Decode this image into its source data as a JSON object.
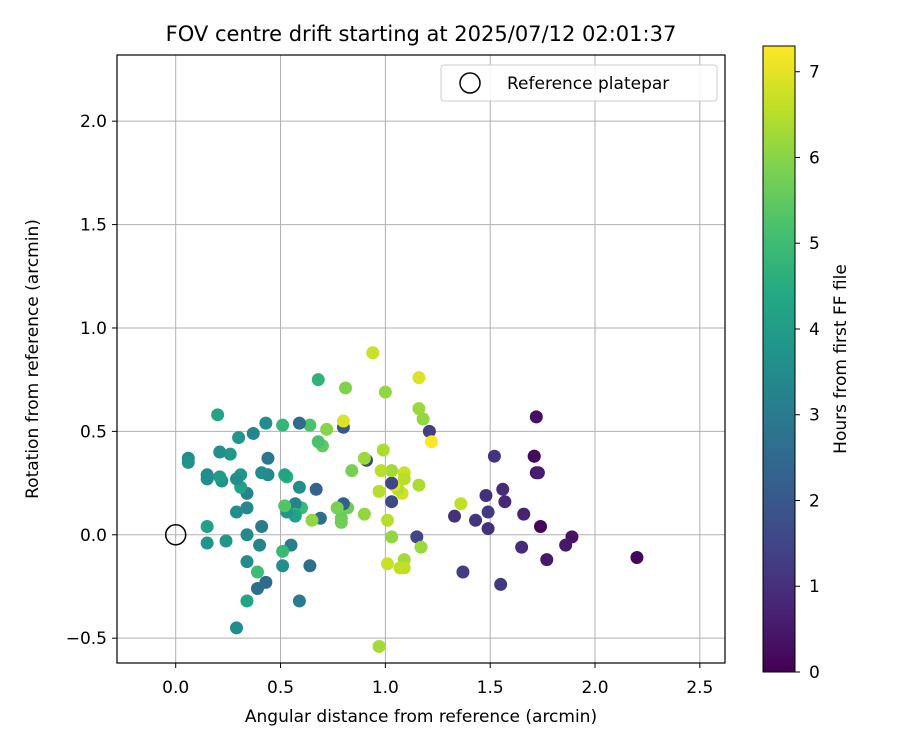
{
  "chart_data": {
    "type": "scatter",
    "title": "FOV centre drift starting at 2025/07/12 02:01:37",
    "xlabel": "Angular distance from reference (arcmin)",
    "ylabel": "Rotation from reference (arcmin)",
    "xlim": [
      -0.28,
      2.62
    ],
    "ylim": [
      -0.62,
      2.32
    ],
    "xticks": [
      0.0,
      0.5,
      1.0,
      1.5,
      2.0,
      2.5
    ],
    "xtick_labels": [
      "0.0",
      "0.5",
      "1.0",
      "1.5",
      "2.0",
      "2.5"
    ],
    "yticks": [
      -0.5,
      0.0,
      0.5,
      1.0,
      1.5,
      2.0
    ],
    "ytick_labels": [
      "−0.5",
      "0.0",
      "0.5",
      "1.0",
      "1.5",
      "2.0"
    ],
    "grid": true,
    "legend": {
      "placement": "top-right",
      "entries": [
        "Reference platepar"
      ]
    },
    "reference_point": {
      "x": 0.0,
      "y": 0.0
    },
    "colorbar": {
      "label": "Hours from first FF file",
      "colormap": "viridis",
      "range": [
        0,
        7.3
      ],
      "ticks": [
        0,
        1,
        2,
        3,
        4,
        5,
        6,
        7
      ],
      "tick_labels": [
        "0",
        "1",
        "2",
        "3",
        "4",
        "5",
        "6",
        "7"
      ]
    },
    "points": [
      {
        "x": 2.2,
        "y": -0.11,
        "h": 0.1
      },
      {
        "x": 1.89,
        "y": -0.01,
        "h": 0.4
      },
      {
        "x": 1.86,
        "y": -0.05,
        "h": 0.5
      },
      {
        "x": 1.74,
        "y": 0.04,
        "h": 0.1
      },
      {
        "x": 1.77,
        "y": -0.12,
        "h": 0.5
      },
      {
        "x": 1.71,
        "y": 0.38,
        "h": 0.0
      },
      {
        "x": 1.71,
        "y": 0.38,
        "h": 0.2
      },
      {
        "x": 1.72,
        "y": 0.57,
        "h": 0.3
      },
      {
        "x": 1.72,
        "y": 0.3,
        "h": 0.4
      },
      {
        "x": 1.73,
        "y": 0.3,
        "h": 0.6
      },
      {
        "x": 1.66,
        "y": 0.1,
        "h": 0.7
      },
      {
        "x": 1.65,
        "y": -0.06,
        "h": 0.9
      },
      {
        "x": 1.57,
        "y": 0.16,
        "h": 0.8
      },
      {
        "x": 1.56,
        "y": 0.22,
        "h": 0.9
      },
      {
        "x": 1.52,
        "y": 0.38,
        "h": 1.1
      },
      {
        "x": 1.55,
        "y": -0.24,
        "h": 1.2
      },
      {
        "x": 1.49,
        "y": 0.11,
        "h": 1.2
      },
      {
        "x": 1.48,
        "y": 0.19,
        "h": 1.0
      },
      {
        "x": 1.49,
        "y": 0.03,
        "h": 1.0
      },
      {
        "x": 1.43,
        "y": 0.07,
        "h": 1.1
      },
      {
        "x": 1.37,
        "y": -0.18,
        "h": 1.3
      },
      {
        "x": 1.33,
        "y": 0.09,
        "h": 1.0
      },
      {
        "x": 1.36,
        "y": 0.15,
        "h": 6.6
      },
      {
        "x": 1.21,
        "y": 0.5,
        "h": 1.3
      },
      {
        "x": 1.22,
        "y": 0.45,
        "h": 7.3
      },
      {
        "x": 1.15,
        "y": -0.01,
        "h": 1.5
      },
      {
        "x": 1.17,
        "y": -0.06,
        "h": 6.2
      },
      {
        "x": 1.16,
        "y": 0.24,
        "h": 6.4
      },
      {
        "x": 1.16,
        "y": 0.61,
        "h": 6.2
      },
      {
        "x": 1.18,
        "y": 0.56,
        "h": 6.1
      },
      {
        "x": 1.16,
        "y": 0.76,
        "h": 6.9
      },
      {
        "x": 1.09,
        "y": 0.3,
        "h": 6.7
      },
      {
        "x": 1.09,
        "y": 0.27,
        "h": 6.5
      },
      {
        "x": 1.09,
        "y": -0.12,
        "h": 6.3
      },
      {
        "x": 1.07,
        "y": -0.16,
        "h": 6.6
      },
      {
        "x": 1.09,
        "y": -0.16,
        "h": 6.6
      },
      {
        "x": 1.08,
        "y": 0.2,
        "h": 6.8
      },
      {
        "x": 1.06,
        "y": 0.22,
        "h": 6.5
      },
      {
        "x": 1.04,
        "y": 0.24,
        "h": 7.0
      },
      {
        "x": 1.03,
        "y": 0.25,
        "h": 1.5
      },
      {
        "x": 1.03,
        "y": 0.16,
        "h": 1.6
      },
      {
        "x": 1.03,
        "y": 0.31,
        "h": 6.3
      },
      {
        "x": 1.03,
        "y": -0.01,
        "h": 6.1
      },
      {
        "x": 1.01,
        "y": 0.07,
        "h": 6.5
      },
      {
        "x": 1.01,
        "y": -0.14,
        "h": 6.7
      },
      {
        "x": 1.0,
        "y": 0.69,
        "h": 6.1
      },
      {
        "x": 0.99,
        "y": 0.41,
        "h": 6.4
      },
      {
        "x": 0.98,
        "y": 0.31,
        "h": 6.5
      },
      {
        "x": 0.97,
        "y": 0.21,
        "h": 6.5
      },
      {
        "x": 0.97,
        "y": -0.54,
        "h": 6.3
      },
      {
        "x": 0.94,
        "y": 0.88,
        "h": 6.7
      },
      {
        "x": 0.91,
        "y": 0.36,
        "h": 1.6
      },
      {
        "x": 0.9,
        "y": 0.37,
        "h": 6.2
      },
      {
        "x": 0.9,
        "y": 0.1,
        "h": 6.1
      },
      {
        "x": 0.84,
        "y": 0.31,
        "h": 5.8
      },
      {
        "x": 0.81,
        "y": 0.71,
        "h": 5.9
      },
      {
        "x": 0.82,
        "y": 0.13,
        "h": 5.7
      },
      {
        "x": 0.8,
        "y": 0.52,
        "h": 2.0
      },
      {
        "x": 0.8,
        "y": 0.55,
        "h": 6.9
      },
      {
        "x": 0.8,
        "y": 0.15,
        "h": 2.2
      },
      {
        "x": 0.79,
        "y": 0.08,
        "h": 5.6
      },
      {
        "x": 0.79,
        "y": 0.06,
        "h": 5.7
      },
      {
        "x": 0.77,
        "y": 0.13,
        "h": 5.8
      },
      {
        "x": 0.72,
        "y": 0.51,
        "h": 6.0
      },
      {
        "x": 0.7,
        "y": 0.43,
        "h": 5.5
      },
      {
        "x": 0.69,
        "y": 0.08,
        "h": 2.6
      },
      {
        "x": 0.68,
        "y": 0.75,
        "h": 4.7
      },
      {
        "x": 0.68,
        "y": 0.45,
        "h": 5.2
      },
      {
        "x": 0.67,
        "y": 0.22,
        "h": 2.3
      },
      {
        "x": 0.65,
        "y": 0.07,
        "h": 6.1
      },
      {
        "x": 0.64,
        "y": 0.53,
        "h": 5.2
      },
      {
        "x": 0.64,
        "y": -0.15,
        "h": 2.7
      },
      {
        "x": 0.6,
        "y": 0.13,
        "h": 4.9
      },
      {
        "x": 0.59,
        "y": 0.54,
        "h": 2.5
      },
      {
        "x": 0.59,
        "y": 0.23,
        "h": 3.5
      },
      {
        "x": 0.59,
        "y": -0.32,
        "h": 3.0
      },
      {
        "x": 0.57,
        "y": 0.15,
        "h": 3.2
      },
      {
        "x": 0.57,
        "y": 0.1,
        "h": 4.7
      },
      {
        "x": 0.57,
        "y": 0.09,
        "h": 4.2
      },
      {
        "x": 0.55,
        "y": -0.05,
        "h": 3.1
      },
      {
        "x": 0.53,
        "y": 0.28,
        "h": 4.6
      },
      {
        "x": 0.53,
        "y": 0.11,
        "h": 3.8
      },
      {
        "x": 0.52,
        "y": 0.29,
        "h": 4.3
      },
      {
        "x": 0.52,
        "y": 0.14,
        "h": 5.3
      },
      {
        "x": 0.51,
        "y": 0.53,
        "h": 4.8
      },
      {
        "x": 0.51,
        "y": -0.08,
        "h": 4.9
      },
      {
        "x": 0.51,
        "y": -0.15,
        "h": 3.6
      },
      {
        "x": 0.44,
        "y": 0.37,
        "h": 2.9
      },
      {
        "x": 0.44,
        "y": 0.29,
        "h": 3.4
      },
      {
        "x": 0.43,
        "y": 0.54,
        "h": 3.5
      },
      {
        "x": 0.43,
        "y": -0.23,
        "h": 2.5
      },
      {
        "x": 0.41,
        "y": 0.3,
        "h": 3.5
      },
      {
        "x": 0.41,
        "y": 0.04,
        "h": 3.0
      },
      {
        "x": 0.4,
        "y": -0.05,
        "h": 3.3
      },
      {
        "x": 0.39,
        "y": -0.26,
        "h": 2.7
      },
      {
        "x": 0.39,
        "y": -0.18,
        "h": 5.0
      },
      {
        "x": 0.37,
        "y": 0.49,
        "h": 3.3
      },
      {
        "x": 0.34,
        "y": 0.2,
        "h": 3.2
      },
      {
        "x": 0.34,
        "y": 0.13,
        "h": 3.4
      },
      {
        "x": 0.34,
        "y": 0.0,
        "h": 3.4
      },
      {
        "x": 0.34,
        "y": -0.13,
        "h": 3.5
      },
      {
        "x": 0.34,
        "y": -0.32,
        "h": 4.3
      },
      {
        "x": 0.3,
        "y": 0.47,
        "h": 3.8
      },
      {
        "x": 0.31,
        "y": 0.29,
        "h": 3.9
      },
      {
        "x": 0.31,
        "y": 0.23,
        "h": 4.2
      },
      {
        "x": 0.29,
        "y": 0.27,
        "h": 3.6
      },
      {
        "x": 0.29,
        "y": 0.11,
        "h": 3.5
      },
      {
        "x": 0.29,
        "y": -0.45,
        "h": 3.5
      },
      {
        "x": 0.26,
        "y": 0.39,
        "h": 3.9
      },
      {
        "x": 0.24,
        "y": -0.03,
        "h": 3.8
      },
      {
        "x": 0.22,
        "y": 0.26,
        "h": 3.7
      },
      {
        "x": 0.21,
        "y": 0.28,
        "h": 4.0
      },
      {
        "x": 0.2,
        "y": 0.58,
        "h": 4.3
      },
      {
        "x": 0.21,
        "y": 0.4,
        "h": 3.6
      },
      {
        "x": 0.15,
        "y": 0.29,
        "h": 3.5
      },
      {
        "x": 0.15,
        "y": 0.27,
        "h": 3.5
      },
      {
        "x": 0.15,
        "y": 0.04,
        "h": 4.1
      },
      {
        "x": 0.15,
        "y": -0.04,
        "h": 3.8
      },
      {
        "x": 0.06,
        "y": 0.37,
        "h": 3.5
      },
      {
        "x": 0.06,
        "y": 0.35,
        "h": 3.7
      }
    ]
  }
}
